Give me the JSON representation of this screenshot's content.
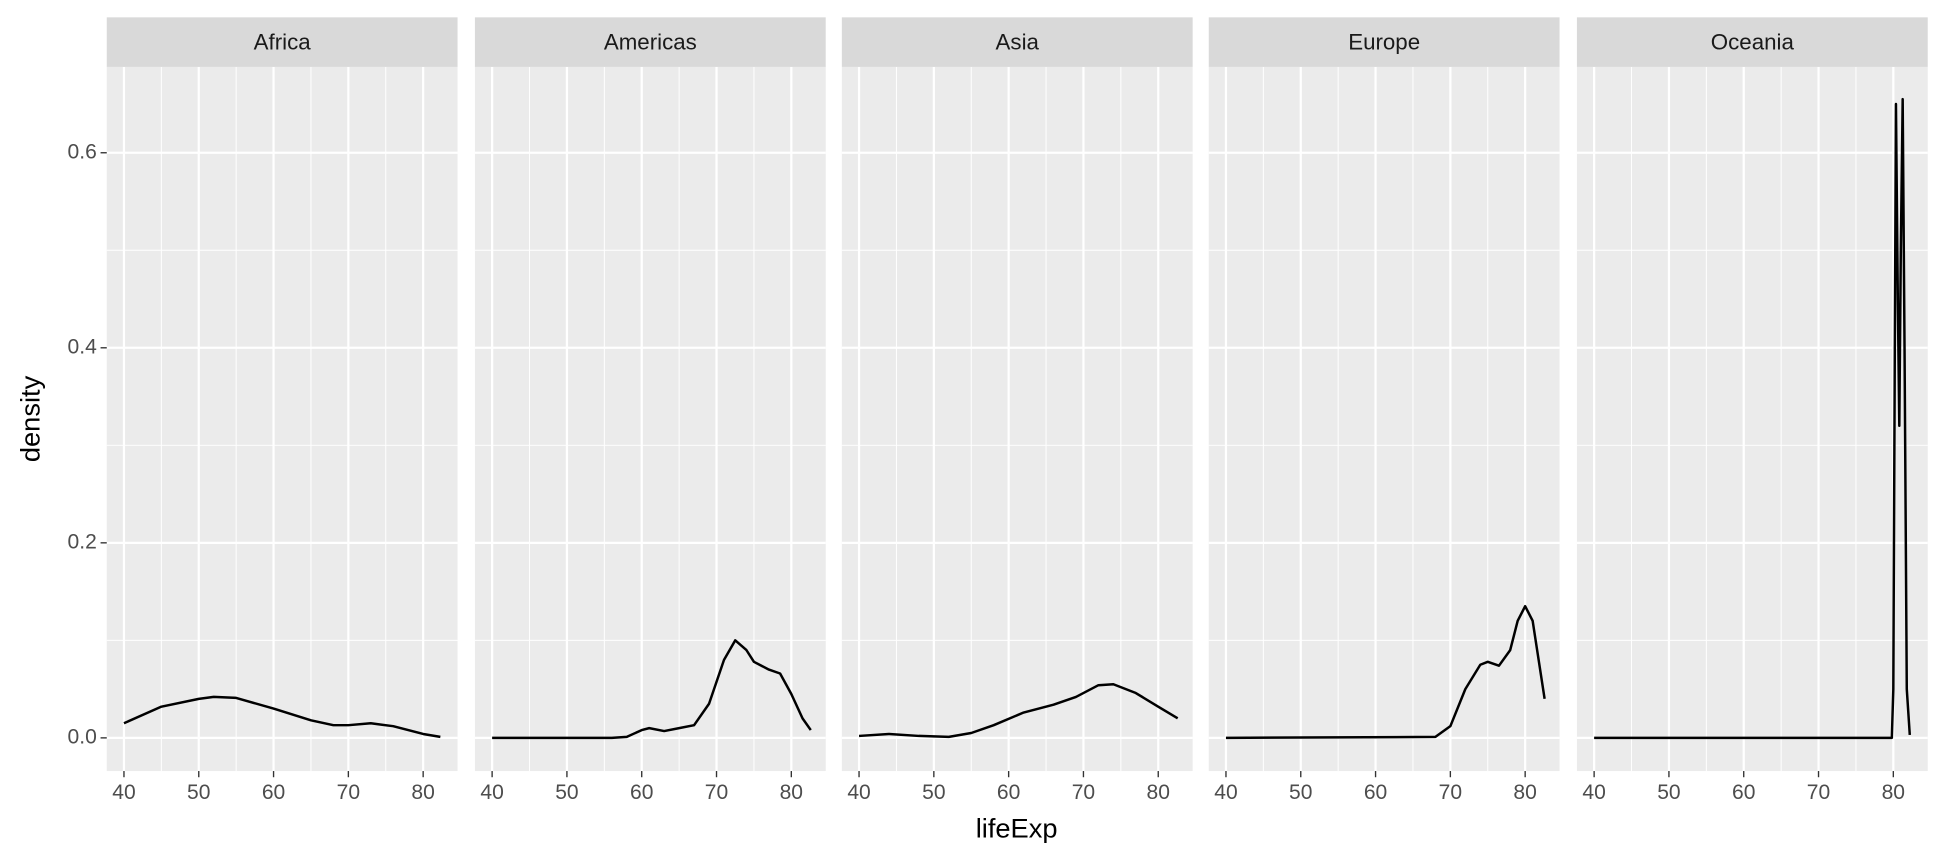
{
  "chart_data": {
    "type": "line",
    "x_label": "lifeExp",
    "y_label": "density",
    "xlim": [
      37.7,
      84.6
    ],
    "xticks": [
      40,
      50,
      60,
      70,
      80
    ],
    "ylim": [
      -0.034,
      0.688
    ],
    "yticks": [
      {
        "value": 0,
        "label": "0.0"
      },
      0.2,
      0.4,
      0.6
    ],
    "grid": true,
    "color": "#000000",
    "panels": [
      {
        "title": "Africa",
        "x": [
          40,
          45,
          50,
          52,
          55,
          60,
          65,
          68,
          70,
          73,
          76,
          80,
          82.3
        ],
        "values": [
          0.015,
          0.032,
          0.04,
          0.042,
          0.041,
          0.03,
          0.018,
          0.013,
          0.013,
          0.015,
          0.012,
          0.004,
          0.001
        ]
      },
      {
        "title": "Americas",
        "x": [
          40,
          56,
          58,
          60,
          61,
          63,
          65,
          67,
          69,
          71,
          72.5,
          74,
          75,
          77,
          78.5,
          80,
          81.5,
          82.6
        ],
        "values": [
          0,
          0,
          0.001,
          0.008,
          0.01,
          0.007,
          0.01,
          0.013,
          0.035,
          0.08,
          0.1,
          0.09,
          0.078,
          0.07,
          0.066,
          0.045,
          0.02,
          0.008
        ]
      },
      {
        "title": "Asia",
        "x": [
          40,
          44,
          48,
          52,
          55,
          58,
          62,
          66,
          69,
          72,
          74,
          77,
          80,
          82.6
        ],
        "values": [
          0.002,
          0.004,
          0.002,
          0.001,
          0.005,
          0.013,
          0.026,
          0.034,
          0.042,
          0.054,
          0.055,
          0.046,
          0.032,
          0.02
        ]
      },
      {
        "title": "Europe",
        "x": [
          40,
          68,
          70,
          72,
          74,
          75,
          76.5,
          78,
          79,
          80,
          81,
          82,
          82.6
        ],
        "values": [
          0,
          0.001,
          0.012,
          0.05,
          0.075,
          0.078,
          0.074,
          0.09,
          0.12,
          0.135,
          0.12,
          0.07,
          0.04
        ]
      },
      {
        "title": "Oceania",
        "x": [
          40,
          79.8,
          80,
          80.2,
          80.35,
          80.6,
          80.8,
          81,
          81.25,
          81.5,
          81.8,
          82.2
        ],
        "values": [
          0,
          0,
          0.05,
          0.4,
          0.65,
          0.45,
          0.32,
          0.5,
          0.655,
          0.4,
          0.05,
          0.003
        ]
      }
    ]
  }
}
